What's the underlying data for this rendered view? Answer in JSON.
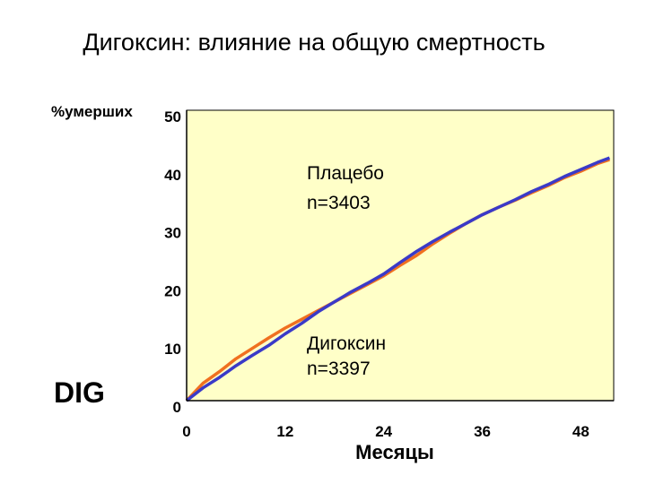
{
  "title": "Дигоксин: влияние на общую смертность",
  "dig_label": "DIG",
  "colors": {
    "plot_bg": "#FFFFC8",
    "placebo": "#F07020",
    "digoxin": "#3A3AC8"
  },
  "chart_data": {
    "type": "line",
    "title": "Дигоксин: влияние на общую смертность",
    "ylabel": "%умерших",
    "xlabel": "Месяцы",
    "xlim": [
      0,
      52
    ],
    "ylim": [
      0,
      50
    ],
    "xticks": [
      0,
      12,
      24,
      36,
      48
    ],
    "yticks": [
      0,
      10,
      20,
      30,
      40,
      50
    ],
    "grid": false,
    "annotations": [
      {
        "lines": [
          "Плацебо",
          "n=3403"
        ]
      },
      {
        "lines": [
          "Дигоксин",
          "n=3397"
        ]
      }
    ],
    "series": [
      {
        "name": "Плацебо",
        "color": "#F07020",
        "x": [
          0,
          2,
          4,
          6,
          8,
          10,
          12,
          14,
          16,
          18,
          20,
          22,
          24,
          26,
          28,
          30,
          32,
          34,
          36,
          38,
          40,
          42,
          44,
          46,
          48,
          50,
          51.5
        ],
        "y": [
          0,
          3,
          5,
          7.2,
          9,
          10.8,
          12.5,
          14,
          15.5,
          17,
          18.5,
          20,
          21.5,
          23.3,
          25,
          27,
          28.8,
          30.5,
          32,
          33.3,
          34.5,
          35.8,
          37,
          38.4,
          39.5,
          40.8,
          41.5
        ]
      },
      {
        "name": "Дигоксин",
        "color": "#3A3AC8",
        "x": [
          0,
          2,
          4,
          6,
          8,
          10,
          12,
          14,
          16,
          18,
          20,
          22,
          24,
          26,
          28,
          30,
          32,
          34,
          36,
          38,
          40,
          42,
          44,
          46,
          48,
          50,
          51.5
        ],
        "y": [
          0,
          2.2,
          4,
          6,
          7.8,
          9.5,
          11.5,
          13.3,
          15.3,
          17,
          18.7,
          20.2,
          21.8,
          23.8,
          25.7,
          27.4,
          29,
          30.5,
          32,
          33.3,
          34.6,
          36,
          37.2,
          38.6,
          39.8,
          41,
          41.8
        ]
      }
    ]
  }
}
